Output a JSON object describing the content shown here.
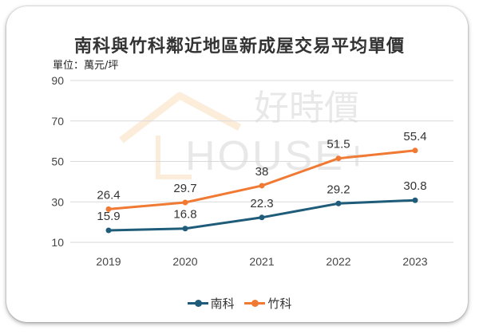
{
  "watermark": {
    "brand_cn": "好時價",
    "brand_en": "HOUSE+"
  },
  "chart_data": {
    "type": "line",
    "title": "南科與竹科鄰近地區新成屋交易平均單價",
    "unit_label": "單位：萬元/坪",
    "categories": [
      "2019",
      "2020",
      "2021",
      "2022",
      "2023"
    ],
    "yticks": [
      "90",
      "70",
      "50",
      "30",
      "10"
    ],
    "ylim": [
      10,
      90
    ],
    "grid": true,
    "legend_position": "bottom",
    "series": [
      {
        "name": "南科",
        "color": "#1f5c7a",
        "values": [
          15.9,
          16.8,
          22.3,
          29.2,
          30.8
        ],
        "labels": [
          "15.9",
          "16.8",
          "22.3",
          "29.2",
          "30.8"
        ]
      },
      {
        "name": "竹科",
        "color": "#f07a33",
        "values": [
          26.4,
          29.7,
          38,
          51.5,
          55.4
        ],
        "labels": [
          "26.4",
          "29.7",
          "38",
          "51.5",
          "55.4"
        ]
      }
    ]
  }
}
